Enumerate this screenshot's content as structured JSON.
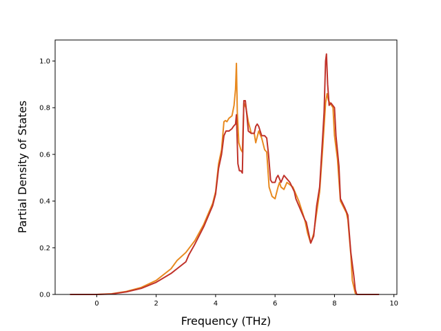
{
  "chart_data": {
    "type": "line",
    "title": "",
    "xlabel": "Frequency (THz)",
    "ylabel": "Partial Density of States",
    "xlim": [
      -1.4,
      10.1
    ],
    "ylim": [
      0.0,
      1.09
    ],
    "xticks": [
      0,
      2,
      4,
      6,
      8,
      10
    ],
    "yticks": [
      0.0,
      0.2,
      0.4,
      0.6,
      0.8,
      1.0
    ],
    "xtick_labels": [
      "0",
      "2",
      "4",
      "6",
      "8",
      "10"
    ],
    "ytick_labels": [
      "0.0",
      "0.2",
      "0.4",
      "0.6",
      "0.8",
      "1.0"
    ],
    "grid": false,
    "legend": false,
    "series": [
      {
        "color": "#e8891f",
        "points": [
          [
            -0.9,
            0
          ],
          [
            0,
            0
          ],
          [
            0.5,
            0.003
          ],
          [
            1.0,
            0.013
          ],
          [
            1.5,
            0.03
          ],
          [
            2.0,
            0.06
          ],
          [
            2.5,
            0.11
          ],
          [
            2.7,
            0.145
          ],
          [
            3.0,
            0.18
          ],
          [
            3.3,
            0.23
          ],
          [
            3.6,
            0.3
          ],
          [
            3.9,
            0.39
          ],
          [
            4.0,
            0.44
          ],
          [
            4.1,
            0.56
          ],
          [
            4.2,
            0.62
          ],
          [
            4.28,
            0.74
          ],
          [
            4.33,
            0.745
          ],
          [
            4.38,
            0.74
          ],
          [
            4.45,
            0.755
          ],
          [
            4.55,
            0.765
          ],
          [
            4.62,
            0.81
          ],
          [
            4.67,
            0.88
          ],
          [
            4.7,
            0.99
          ],
          [
            4.73,
            0.78
          ],
          [
            4.78,
            0.65
          ],
          [
            4.85,
            0.62
          ],
          [
            4.9,
            0.61
          ],
          [
            4.95,
            0.82
          ],
          [
            5.02,
            0.8
          ],
          [
            5.1,
            0.74
          ],
          [
            5.2,
            0.69
          ],
          [
            5.3,
            0.69
          ],
          [
            5.35,
            0.65
          ],
          [
            5.45,
            0.7
          ],
          [
            5.55,
            0.67
          ],
          [
            5.65,
            0.62
          ],
          [
            5.72,
            0.61
          ],
          [
            5.8,
            0.46
          ],
          [
            5.9,
            0.42
          ],
          [
            6.0,
            0.41
          ],
          [
            6.1,
            0.46
          ],
          [
            6.15,
            0.48
          ],
          [
            6.2,
            0.46
          ],
          [
            6.3,
            0.45
          ],
          [
            6.4,
            0.48
          ],
          [
            6.6,
            0.46
          ],
          [
            6.8,
            0.4
          ],
          [
            7.0,
            0.32
          ],
          [
            7.1,
            0.26
          ],
          [
            7.2,
            0.22
          ],
          [
            7.3,
            0.26
          ],
          [
            7.5,
            0.44
          ],
          [
            7.6,
            0.62
          ],
          [
            7.7,
            0.82
          ],
          [
            7.75,
            0.86
          ],
          [
            7.8,
            0.83
          ],
          [
            7.95,
            0.8
          ],
          [
            8.0,
            0.68
          ],
          [
            8.1,
            0.58
          ],
          [
            8.2,
            0.4
          ],
          [
            8.4,
            0.35
          ],
          [
            8.45,
            0.32
          ],
          [
            8.55,
            0.17
          ],
          [
            8.6,
            0.06
          ],
          [
            8.7,
            0.005
          ],
          [
            8.75,
            0
          ],
          [
            9.5,
            0
          ]
        ]
      },
      {
        "color": "#c0322a",
        "points": [
          [
            -0.9,
            0
          ],
          [
            0,
            0
          ],
          [
            0.5,
            0.002
          ],
          [
            1.0,
            0.011
          ],
          [
            1.5,
            0.026
          ],
          [
            2.0,
            0.052
          ],
          [
            2.5,
            0.09
          ],
          [
            3.0,
            0.14
          ],
          [
            3.1,
            0.17
          ],
          [
            3.3,
            0.215
          ],
          [
            3.6,
            0.29
          ],
          [
            3.9,
            0.38
          ],
          [
            4.0,
            0.43
          ],
          [
            4.1,
            0.54
          ],
          [
            4.2,
            0.6
          ],
          [
            4.28,
            0.68
          ],
          [
            4.35,
            0.7
          ],
          [
            4.45,
            0.7
          ],
          [
            4.55,
            0.71
          ],
          [
            4.6,
            0.72
          ],
          [
            4.67,
            0.73
          ],
          [
            4.7,
            0.77
          ],
          [
            4.75,
            0.56
          ],
          [
            4.8,
            0.53
          ],
          [
            4.85,
            0.53
          ],
          [
            4.9,
            0.52
          ],
          [
            4.95,
            0.83
          ],
          [
            5.0,
            0.83
          ],
          [
            5.05,
            0.77
          ],
          [
            5.1,
            0.7
          ],
          [
            5.2,
            0.69
          ],
          [
            5.3,
            0.69
          ],
          [
            5.35,
            0.72
          ],
          [
            5.4,
            0.73
          ],
          [
            5.45,
            0.72
          ],
          [
            5.55,
            0.68
          ],
          [
            5.65,
            0.68
          ],
          [
            5.72,
            0.67
          ],
          [
            5.78,
            0.6
          ],
          [
            5.85,
            0.49
          ],
          [
            5.9,
            0.48
          ],
          [
            6.0,
            0.48
          ],
          [
            6.05,
            0.5
          ],
          [
            6.1,
            0.51
          ],
          [
            6.2,
            0.48
          ],
          [
            6.3,
            0.51
          ],
          [
            6.5,
            0.48
          ],
          [
            6.65,
            0.44
          ],
          [
            6.7,
            0.41
          ],
          [
            6.9,
            0.35
          ],
          [
            7.0,
            0.32
          ],
          [
            7.05,
            0.31
          ],
          [
            7.2,
            0.22
          ],
          [
            7.3,
            0.25
          ],
          [
            7.4,
            0.38
          ],
          [
            7.5,
            0.46
          ],
          [
            7.6,
            0.67
          ],
          [
            7.65,
            0.78
          ],
          [
            7.7,
            1.0
          ],
          [
            7.73,
            1.03
          ],
          [
            7.77,
            0.9
          ],
          [
            7.82,
            0.81
          ],
          [
            7.88,
            0.82
          ],
          [
            8.0,
            0.8
          ],
          [
            8.05,
            0.68
          ],
          [
            8.15,
            0.55
          ],
          [
            8.2,
            0.41
          ],
          [
            8.35,
            0.37
          ],
          [
            8.45,
            0.34
          ],
          [
            8.55,
            0.18
          ],
          [
            8.65,
            0.08
          ],
          [
            8.7,
            0.02
          ],
          [
            8.75,
            0
          ],
          [
            9.5,
            0
          ]
        ]
      }
    ]
  }
}
